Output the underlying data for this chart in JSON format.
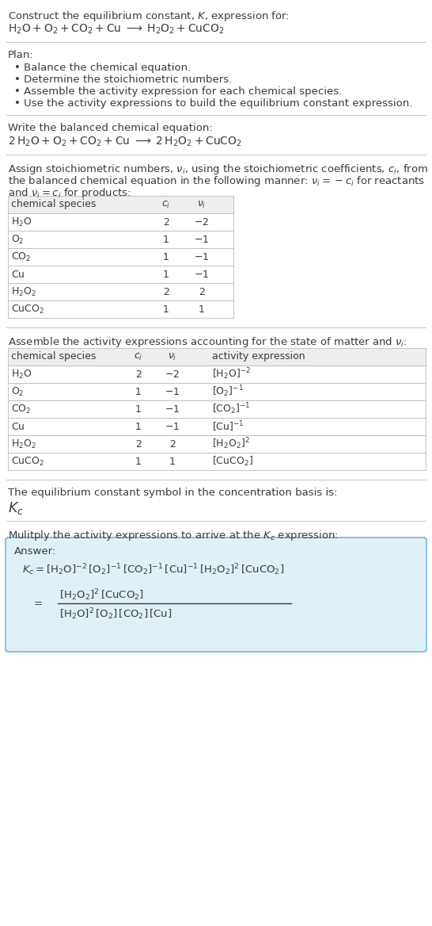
{
  "bg_color": "#ffffff",
  "text_color": "#3a3a3a",
  "title_line1": "Construct the equilibrium constant, $K$, expression for:",
  "title_line2": "$\\mathrm{H_2O + O_2 + CO_2 + Cu} \\;\\longrightarrow\\; \\mathrm{H_2O_2 + CuCO_2}$",
  "plan_header": "Plan:",
  "plan_items": [
    "Balance the chemical equation.",
    "Determine the stoichiometric numbers.",
    "Assemble the activity expression for each chemical species.",
    "Use the activity expressions to build the equilibrium constant expression."
  ],
  "balanced_header": "Write the balanced chemical equation:",
  "balanced_eq": "$\\mathrm{2\\,H_2O + O_2 + CO_2 + Cu} \\;\\longrightarrow\\; \\mathrm{2\\,H_2O_2 + CuCO_2}$",
  "stoich_header1": "Assign stoichiometric numbers, $\\nu_i$, using the stoichiometric coefficients, $c_i$, from",
  "stoich_header2": "the balanced chemical equation in the following manner: $\\nu_i = -c_i$ for reactants",
  "stoich_header3": "and $\\nu_i = c_i$ for products:",
  "table1_cols": [
    "chemical species",
    "$c_i$",
    "$\\nu_i$"
  ],
  "table1_data": [
    [
      "$\\mathrm{H_2O}$",
      "2",
      "$-2$"
    ],
    [
      "$\\mathrm{O_2}$",
      "1",
      "$-1$"
    ],
    [
      "$\\mathrm{CO_2}$",
      "1",
      "$-1$"
    ],
    [
      "$\\mathrm{Cu}$",
      "1",
      "$-1$"
    ],
    [
      "$\\mathrm{H_2O_2}$",
      "2",
      "2"
    ],
    [
      "$\\mathrm{CuCO_2}$",
      "1",
      "1"
    ]
  ],
  "activity_header": "Assemble the activity expressions accounting for the state of matter and $\\nu_i$:",
  "table2_cols": [
    "chemical species",
    "$c_i$",
    "$\\nu_i$",
    "activity expression"
  ],
  "table2_data": [
    [
      "$\\mathrm{H_2O}$",
      "2",
      "$-2$",
      "$[\\mathrm{H_2O}]^{-2}$"
    ],
    [
      "$\\mathrm{O_2}$",
      "1",
      "$-1$",
      "$[\\mathrm{O_2}]^{-1}$"
    ],
    [
      "$\\mathrm{CO_2}$",
      "1",
      "$-1$",
      "$[\\mathrm{CO_2}]^{-1}$"
    ],
    [
      "$\\mathrm{Cu}$",
      "1",
      "$-1$",
      "$[\\mathrm{Cu}]^{-1}$"
    ],
    [
      "$\\mathrm{H_2O_2}$",
      "2",
      "2",
      "$[\\mathrm{H_2O_2}]^{2}$"
    ],
    [
      "$\\mathrm{CuCO_2}$",
      "1",
      "1",
      "$[\\mathrm{CuCO_2}]$"
    ]
  ],
  "kc_header": "The equilibrium constant symbol in the concentration basis is:",
  "kc_symbol": "$K_c$",
  "multiply_header": "Mulitply the activity expressions to arrive at the $K_c$ expression:",
  "answer_box_color": "#dff0f7",
  "answer_box_border": "#89c4d8",
  "answer_label": "Answer:",
  "answer_line1": "$K_c = [\\mathrm{H_2O}]^{-2}\\,[\\mathrm{O_2}]^{-1}\\,[\\mathrm{CO_2}]^{-1}\\,[\\mathrm{Cu}]^{-1}\\,[\\mathrm{H_2O_2}]^{2}\\,[\\mathrm{CuCO_2}]$",
  "answer_numerator": "$[\\mathrm{H_2O_2}]^{2}\\,[\\mathrm{CuCO_2}]$",
  "answer_denominator": "$[\\mathrm{H_2O}]^{2}\\,[\\mathrm{O_2}]\\,[\\mathrm{CO_2}]\\,[\\mathrm{Cu}]$",
  "table_header_color": "#eeeeee",
  "table_line_color": "#bbbbbb",
  "sep_line_color": "#cccccc",
  "font_size": 9.5,
  "font_size_table": 9.0
}
